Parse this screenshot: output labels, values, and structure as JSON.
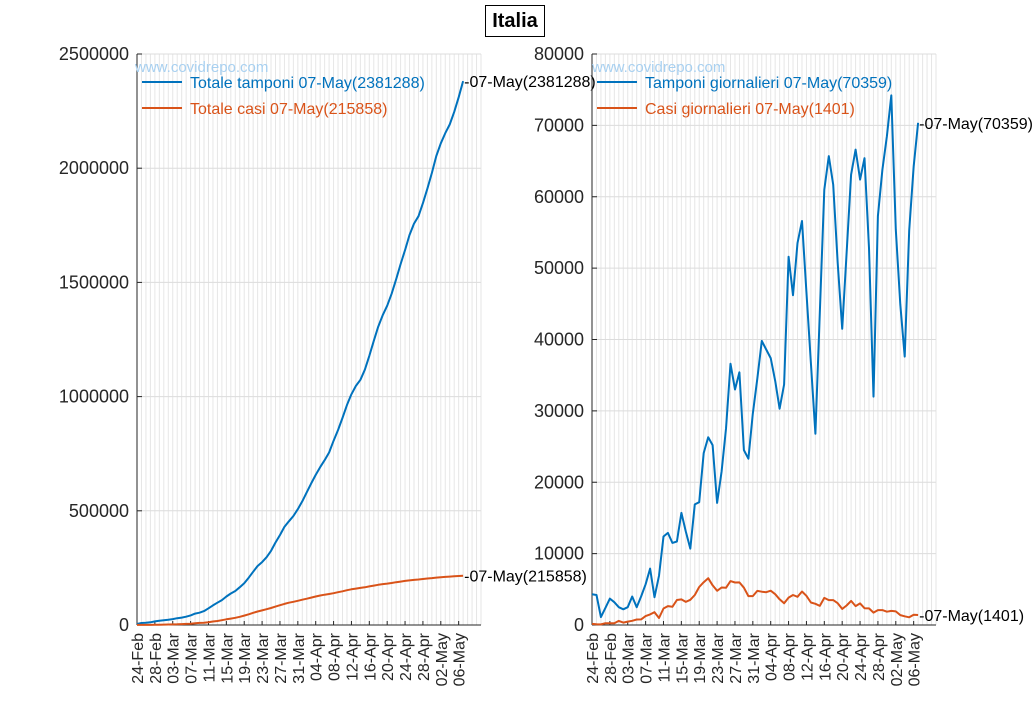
{
  "page": {
    "title": "Italia"
  },
  "chart_data": [
    {
      "type": "line",
      "watermark": "www.covidrepo.com",
      "x_ticks": [
        "24-Feb",
        "28-Feb",
        "03-Mar",
        "07-Mar",
        "11-Mar",
        "15-Mar",
        "19-Mar",
        "23-Mar",
        "27-Mar",
        "31-Mar",
        "04-Apr",
        "08-Apr",
        "12-Apr",
        "16-Apr",
        "20-Apr",
        "24-Apr",
        "28-Apr",
        "02-May",
        "06-May"
      ],
      "ylim": [
        0,
        2500000
      ],
      "y_ticks": [
        "0",
        "500000",
        "1000000",
        "1500000",
        "2000000",
        "2500000"
      ],
      "grid": true,
      "legend_position": "top-left",
      "series": [
        {
          "name": "Totale tamponi 07-May(2381288)",
          "end_label": "-07-May(2381288)",
          "color": "#0072BD",
          "values": [
            4324,
            8623,
            9587,
            12014,
            15695,
            18661,
            21127,
            23345,
            25856,
            29837,
            32362,
            36359,
            42062,
            49937,
            53826,
            60761,
            73154,
            86011,
            97488,
            109170,
            124899,
            137962,
            148657,
            165541,
            182777,
            206886,
            233222,
            258402,
            275468,
            296964,
            324445,
            361060,
            394079,
            429526,
            454030,
            477359,
            506968,
            541423,
            581232,
            619849,
            657224,
            691461,
            721732,
            755445,
            807125,
            853369,
            906864,
            963473,
            1010193,
            1046910,
            1073689,
            1117404,
            1178403,
            1244108,
            1305833,
            1356541,
            1398024,
            1450150,
            1513251,
            1579909,
            1642356,
            1707743,
            1757659,
            1789662,
            1846934,
            1910761,
            1979217,
            2053425,
            2108837,
            2153772,
            2191403,
            2246666,
            2310929,
            2381288
          ]
        },
        {
          "name": "Totale casi 07-May(215858)",
          "end_label": "-07-May(215858)",
          "color": "#D95319",
          "values": [
            229,
            322,
            400,
            650,
            888,
            1128,
            1694,
            2036,
            2502,
            3089,
            3858,
            4636,
            5883,
            7375,
            9172,
            10149,
            12462,
            15113,
            17660,
            21157,
            24747,
            27980,
            31506,
            35713,
            41035,
            47021,
            53578,
            59138,
            63927,
            69176,
            74386,
            80539,
            86498,
            92472,
            97689,
            101739,
            105792,
            110574,
            115242,
            119827,
            124632,
            128948,
            132547,
            135586,
            139422,
            143626,
            147577,
            152271,
            156363,
            159516,
            162488,
            165155,
            168941,
            172434,
            175925,
            178972,
            181228,
            183957,
            187327,
            189973,
            192994,
            195351,
            197675,
            199414,
            201505,
            203591,
            205463,
            207428,
            209328,
            210717,
            211938,
            213013,
            214457,
            215858
          ]
        }
      ]
    },
    {
      "type": "line",
      "watermark": "www.covidrepo.com",
      "x_ticks": [
        "24-Feb",
        "28-Feb",
        "03-Mar",
        "07-Mar",
        "11-Mar",
        "15-Mar",
        "19-Mar",
        "23-Mar",
        "27-Mar",
        "31-Mar",
        "04-Apr",
        "08-Apr",
        "12-Apr",
        "16-Apr",
        "20-Apr",
        "24-Apr",
        "28-Apr",
        "02-May",
        "06-May"
      ],
      "ylim": [
        0,
        80000
      ],
      "y_ticks": [
        "0",
        "10000",
        "20000",
        "30000",
        "40000",
        "50000",
        "60000",
        "70000",
        "80000"
      ],
      "grid": true,
      "legend_position": "top-left",
      "series": [
        {
          "name": "Tamponi giornalieri 07-May(70359)",
          "end_label": "-07-May(70359)",
          "color": "#0072BD",
          "values": [
            4300,
            4200,
            1100,
            2400,
            3700,
            3200,
            2500,
            2200,
            2500,
            4000,
            2500,
            4000,
            5700,
            7900,
            3900,
            6900,
            12400,
            12900,
            11500,
            11700,
            15700,
            13100,
            10700,
            16900,
            17200,
            24100,
            26300,
            25200,
            17100,
            21500,
            27500,
            36600,
            33000,
            35400,
            24500,
            23300,
            29600,
            34500,
            39800,
            38600,
            37400,
            34200,
            30300,
            33700,
            51600,
            46200,
            53500,
            56600,
            46700,
            36700,
            26800,
            43700,
            61000,
            65700,
            61700,
            50700,
            41500,
            52100,
            63100,
            66600,
            62400,
            65400,
            52800,
            32000,
            57300,
            63800,
            68500,
            74200,
            55400,
            44900,
            37600,
            55300,
            64300,
            70359
          ]
        },
        {
          "name": "Casi giornalieri 07-May(1401)",
          "end_label": "-07-May(1401)",
          "color": "#D95319",
          "values": [
            150,
            100,
            80,
            250,
            240,
            240,
            570,
            340,
            470,
            590,
            770,
            780,
            1250,
            1490,
            1800,
            980,
            2310,
            2650,
            2550,
            3500,
            3590,
            3230,
            3530,
            4210,
            5320,
            5990,
            6560,
            5560,
            4790,
            5250,
            5210,
            6150,
            5960,
            5970,
            5220,
            4050,
            4050,
            4780,
            4670,
            4590,
            4810,
            4320,
            3600,
            3040,
            3840,
            4200,
            3950,
            4690,
            4090,
            3150,
            2970,
            2670,
            3790,
            3490,
            3490,
            3050,
            2260,
            2730,
            3370,
            2650,
            3020,
            2360,
            2320,
            1740,
            2090,
            2090,
            1870,
            1970,
            1900,
            1390,
            1220,
            1080,
            1440,
            1401
          ]
        }
      ]
    }
  ]
}
